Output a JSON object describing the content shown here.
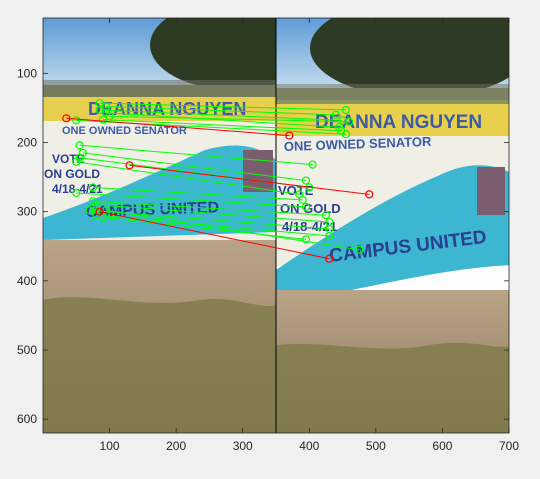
{
  "chart_data": {
    "type": "scatter",
    "title": "",
    "xlabel": "",
    "ylabel": "",
    "xlim": [
      0,
      700
    ],
    "ylim": [
      620,
      20
    ],
    "x_ticks": [
      100,
      200,
      300,
      400,
      500,
      600,
      700
    ],
    "y_ticks": [
      100,
      200,
      300,
      400,
      500,
      600
    ],
    "divider_x": 350,
    "grid": false,
    "legend": "none",
    "image_panels": [
      {
        "name": "left-photo",
        "x_range": [
          0,
          350
        ],
        "banner_text": [
          "DEANNA NGUYEN",
          "ONE OWNED SENATOR"
        ],
        "mural_text": [
          "VOTE",
          "ON GOLD",
          "4/18-4/21",
          "CAMPUS UNITED"
        ]
      },
      {
        "name": "right-photo",
        "x_range": [
          350,
          700
        ],
        "banner_text": [
          "DEANNA NGUYEN",
          "ONE OWNED SENATOR"
        ],
        "mural_text": [
          "VOTE",
          "ON GOLD",
          "4/18-4/21",
          "CAMPUS UNITED"
        ]
      }
    ],
    "colors": {
      "inlier": "#00ff00",
      "outlier": "#ff0000",
      "axes_bg": "#ffffff",
      "figure_bg": "#f0f0f0"
    },
    "matches": [
      {
        "p1": [
          85,
          143
        ],
        "p2": [
          455,
          153
        ],
        "inlier": true
      },
      {
        "p1": [
          95,
          148
        ],
        "p2": [
          440,
          160
        ],
        "inlier": true
      },
      {
        "p1": [
          85,
          153
        ],
        "p2": [
          450,
          168
        ],
        "inlier": true
      },
      {
        "p1": [
          95,
          157
        ],
        "p2": [
          445,
          178
        ],
        "inlier": true
      },
      {
        "p1": [
          100,
          162
        ],
        "p2": [
          460,
          170
        ],
        "inlier": true
      },
      {
        "p1": [
          90,
          167
        ],
        "p2": [
          448,
          183
        ],
        "inlier": true
      },
      {
        "p1": [
          50,
          168
        ],
        "p2": [
          455,
          188
        ],
        "inlier": true
      },
      {
        "p1": [
          55,
          204
        ],
        "p2": [
          405,
          232
        ],
        "inlier": true
      },
      {
        "p1": [
          60,
          215
        ],
        "p2": [
          395,
          255
        ],
        "inlier": true
      },
      {
        "p1": [
          55,
          222
        ],
        "p2": [
          400,
          265
        ],
        "inlier": true
      },
      {
        "p1": [
          50,
          228
        ],
        "p2": [
          385,
          275
        ],
        "inlier": true
      },
      {
        "p1": [
          75,
          265
        ],
        "p2": [
          390,
          283
        ],
        "inlier": true
      },
      {
        "p1": [
          50,
          273
        ],
        "p2": [
          395,
          293
        ],
        "inlier": true
      },
      {
        "p1": [
          75,
          285
        ],
        "p2": [
          425,
          305
        ],
        "inlier": true
      },
      {
        "p1": [
          80,
          290
        ],
        "p2": [
          430,
          315
        ],
        "inlier": true
      },
      {
        "p1": [
          70,
          298
        ],
        "p2": [
          430,
          325
        ],
        "inlier": true
      },
      {
        "p1": [
          80,
          305
        ],
        "p2": [
          430,
          335
        ],
        "inlier": true
      },
      {
        "p1": [
          90,
          308
        ],
        "p2": [
          395,
          340
        ],
        "inlier": true
      },
      {
        "p1": [
          95,
          298
        ],
        "p2": [
          475,
          355
        ],
        "inlier": true
      },
      {
        "p1": [
          35,
          165
        ],
        "p2": [
          370,
          190
        ],
        "inlier": false
      },
      {
        "p1": [
          130,
          233
        ],
        "p2": [
          490,
          275
        ],
        "inlier": false
      },
      {
        "p1": [
          85,
          300
        ],
        "p2": [
          430,
          368
        ],
        "inlier": false
      }
    ]
  }
}
